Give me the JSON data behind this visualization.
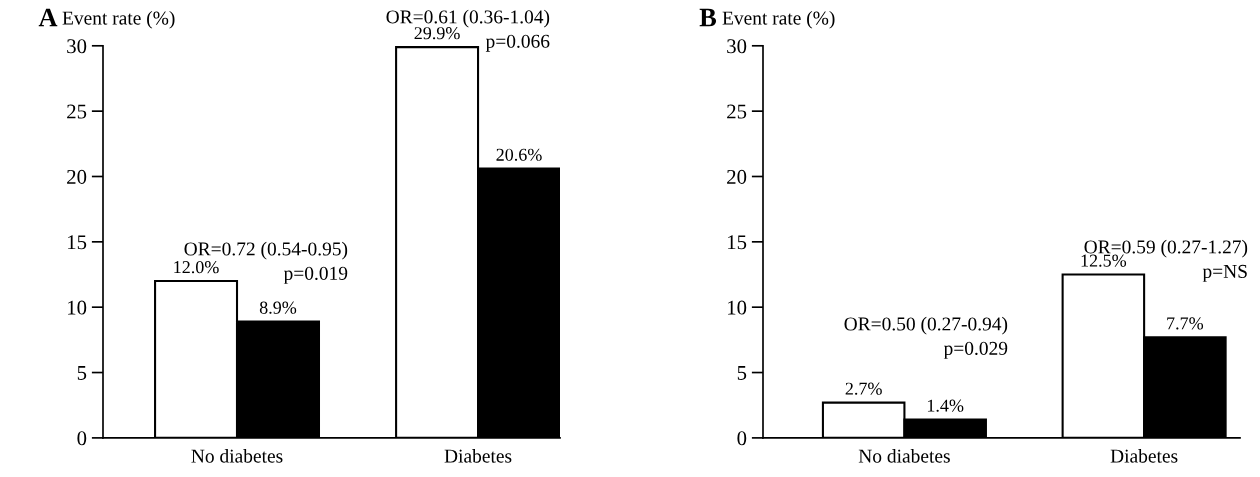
{
  "chart_data": [
    {
      "type": "bar",
      "title": "A",
      "ylabel": "Event rate (%)",
      "categories": [
        "No diabetes",
        "Diabetes"
      ],
      "series": [
        {
          "color": "#ffffff",
          "values": [
            12.0,
            29.9
          ],
          "value_labels": [
            "12.0%",
            "29.9%"
          ]
        },
        {
          "color": "#000000",
          "values": [
            8.9,
            20.6
          ],
          "value_labels": [
            "8.9%",
            "20.6%"
          ]
        }
      ],
      "ylim": [
        0,
        30
      ],
      "yticks": [
        0,
        5,
        10,
        15,
        20,
        25,
        30
      ],
      "grid": false,
      "annotations": [
        "OR=0.72 (0.54-0.95)\np=0.019",
        "OR=0.61 (0.36-1.04)\np=0.066"
      ]
    },
    {
      "type": "bar",
      "title": "B",
      "ylabel": "Event rate (%)",
      "categories": [
        "No diabetes",
        "Diabetes"
      ],
      "series": [
        {
          "color": "#ffffff",
          "values": [
            2.7,
            12.5
          ],
          "value_labels": [
            "2.7%",
            "12.5%"
          ]
        },
        {
          "color": "#000000",
          "values": [
            1.4,
            7.7
          ],
          "value_labels": [
            "1.4%",
            "7.7%"
          ]
        }
      ],
      "ylim": [
        0,
        30
      ],
      "yticks": [
        0,
        5,
        10,
        15,
        20,
        25,
        30
      ],
      "grid": false,
      "annotations": [
        "OR=0.50 (0.27-0.94)\np=0.029",
        "OR=0.59 (0.27-1.27)\np=NS"
      ]
    }
  ]
}
